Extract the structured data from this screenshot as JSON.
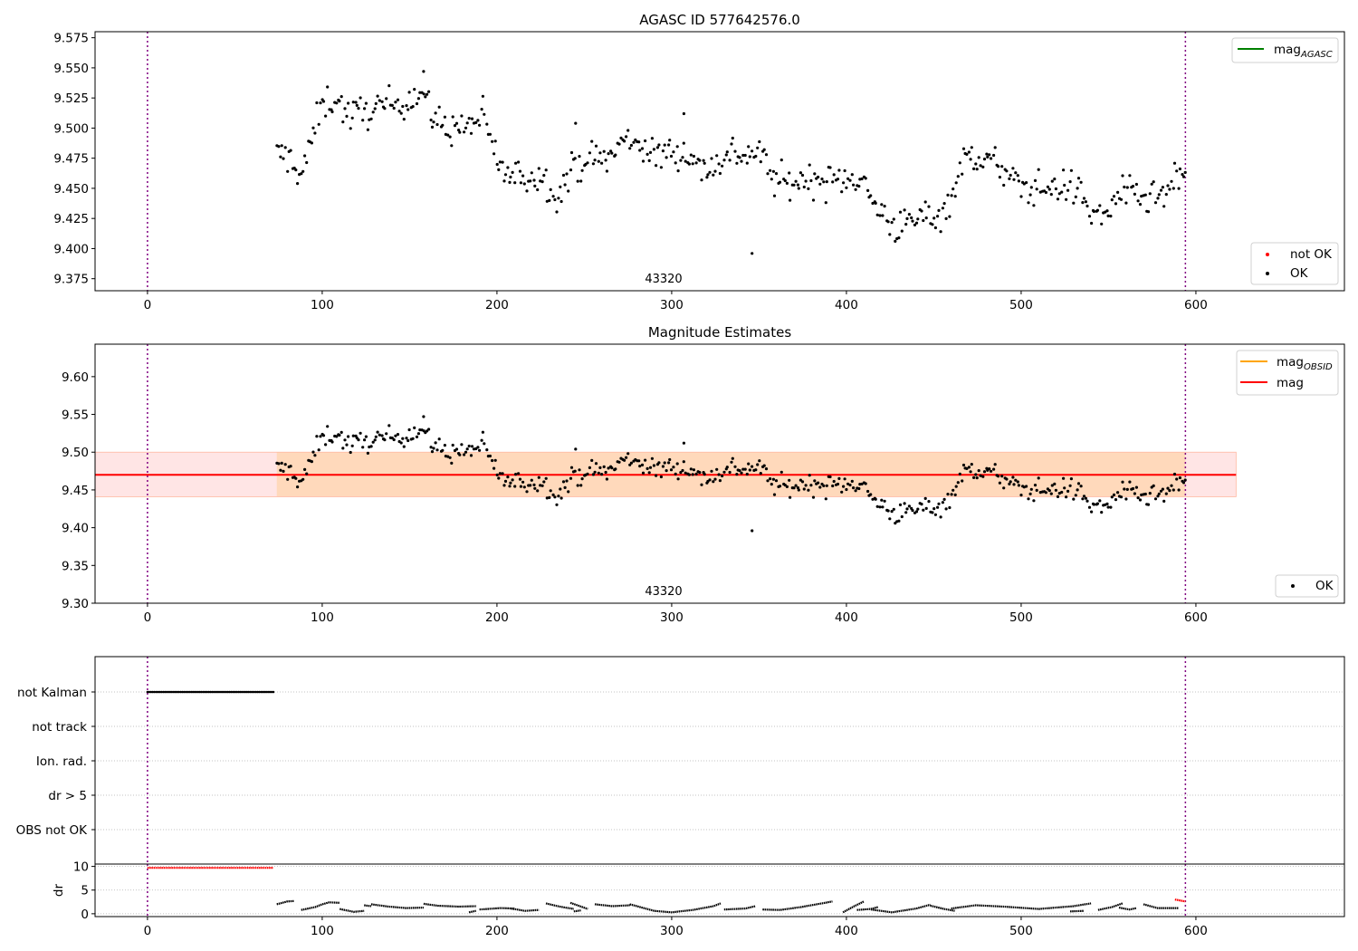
{
  "chart_data": [
    {
      "type": "scatter",
      "title": "AGASC ID 577642576.0",
      "xlim": [
        -30,
        685
      ],
      "ylim": [
        9.365,
        9.58
      ],
      "xticks": [
        0,
        100,
        200,
        300,
        400,
        500,
        600
      ],
      "yticks": [
        "9.375",
        "9.400",
        "9.425",
        "9.450",
        "9.475",
        "9.500",
        "9.525",
        "9.550",
        "9.575"
      ],
      "vlines": [
        0,
        594
      ],
      "obsid_label": "43320",
      "legends": [
        {
          "position": "upper right",
          "entries": [
            {
              "kind": "line",
              "color": "#008000",
              "label": "mag",
              "sub": "AGASC"
            }
          ]
        },
        {
          "position": "lower right",
          "entries": [
            {
              "kind": "marker",
              "color": "#ff0000",
              "label": "not OK"
            },
            {
              "kind": "marker",
              "color": "#000000",
              "label": "OK"
            }
          ]
        }
      ],
      "series": [
        {
          "name": "OK",
          "color": "#000000",
          "x_start": 74,
          "x_end": 594,
          "x_step": 1.0,
          "knots": [
            [
              74,
              9.478
            ],
            [
              82,
              9.475
            ],
            [
              88,
              9.46
            ],
            [
              94,
              9.49
            ],
            [
              100,
              9.52
            ],
            [
              108,
              9.525
            ],
            [
              115,
              9.51
            ],
            [
              128,
              9.515
            ],
            [
              140,
              9.52
            ],
            [
              150,
              9.525
            ],
            [
              158,
              9.53
            ],
            [
              162,
              9.51
            ],
            [
              172,
              9.5
            ],
            [
              182,
              9.5
            ],
            [
              192,
              9.51
            ],
            [
              197,
              9.485
            ],
            [
              205,
              9.46
            ],
            [
              215,
              9.46
            ],
            [
              225,
              9.46
            ],
            [
              235,
              9.445
            ],
            [
              245,
              9.47
            ],
            [
              255,
              9.475
            ],
            [
              265,
              9.475
            ],
            [
              272,
              9.49
            ],
            [
              280,
              9.49
            ],
            [
              290,
              9.475
            ],
            [
              300,
              9.482
            ],
            [
              310,
              9.478
            ],
            [
              318,
              9.465
            ],
            [
              325,
              9.47
            ],
            [
              335,
              9.48
            ],
            [
              342,
              9.478
            ],
            [
              350,
              9.48
            ],
            [
              360,
              9.455
            ],
            [
              370,
              9.455
            ],
            [
              380,
              9.458
            ],
            [
              392,
              9.455
            ],
            [
              402,
              9.46
            ],
            [
              408,
              9.46
            ],
            [
              413,
              9.443
            ],
            [
              420,
              9.43
            ],
            [
              428,
              9.418
            ],
            [
              436,
              9.42
            ],
            [
              445,
              9.428
            ],
            [
              455,
              9.428
            ],
            [
              460,
              9.445
            ],
            [
              465,
              9.465
            ],
            [
              470,
              9.478
            ],
            [
              478,
              9.475
            ],
            [
              488,
              9.468
            ],
            [
              495,
              9.455
            ],
            [
              505,
              9.45
            ],
            [
              515,
              9.45
            ],
            [
              525,
              9.452
            ],
            [
              533,
              9.448
            ],
            [
              540,
              9.43
            ],
            [
              548,
              9.425
            ],
            [
              555,
              9.447
            ],
            [
              565,
              9.443
            ],
            [
              575,
              9.44
            ],
            [
              585,
              9.447
            ],
            [
              594,
              9.467
            ]
          ],
          "noise": 0.01,
          "outliers": [
            [
              346,
              9.396
            ],
            [
              158,
              9.547
            ],
            [
              307,
              9.512
            ],
            [
              245,
              9.504
            ]
          ]
        },
        {
          "name": "not OK",
          "color": "#ff0000",
          "points": []
        }
      ]
    },
    {
      "type": "scatter",
      "title": "Magnitude Estimates",
      "xlim": [
        -30,
        685
      ],
      "ylim": [
        9.3,
        9.643
      ],
      "xticks": [
        0,
        100,
        200,
        300,
        400,
        500,
        600
      ],
      "yticks": [
        "9.30",
        "9.35",
        "9.40",
        "9.45",
        "9.50",
        "9.55",
        "9.60"
      ],
      "vlines": [
        0,
        594
      ],
      "obsid_label": "43320",
      "mag": 9.47,
      "mag_band": {
        "x": [
          -30,
          623
        ],
        "low": 9.441,
        "high": 9.5
      },
      "mag_obsid_band": {
        "x": [
          74,
          594
        ],
        "low": 9.441,
        "high": 9.5
      },
      "legends": [
        {
          "position": "upper right",
          "entries": [
            {
              "kind": "line",
              "color": "#ffa500",
              "label": "mag",
              "sub": "OBSID"
            },
            {
              "kind": "line",
              "color": "#ff0000",
              "label": "mag"
            }
          ]
        },
        {
          "position": "lower right",
          "entries": [
            {
              "kind": "marker",
              "color": "#000000",
              "label": "OK"
            }
          ]
        }
      ]
    },
    {
      "type": "scatter",
      "xlim": [
        -30,
        685
      ],
      "categories": [
        "not Kalman",
        "not track",
        "Ion. rad.",
        "dr > 5",
        "OBS not OK"
      ],
      "flag_points": {
        "not Kalman": [
          0,
          72
        ],
        "not track": [],
        "Ion. rad.": [],
        "dr > 5": [],
        "OBS not OK": []
      },
      "vlines": [
        0,
        594
      ]
    },
    {
      "type": "line",
      "ylabel": "dr",
      "xlim": [
        -30,
        685
      ],
      "ylim": [
        -0.6,
        10.5
      ],
      "xticks": [
        0,
        100,
        200,
        300,
        400,
        500,
        600
      ],
      "yticks": [
        "0",
        "5",
        "10"
      ],
      "vlines": [
        0,
        594
      ],
      "series": [
        {
          "name": "red",
          "color": "#ff0000",
          "segments": [
            [
              [
                0,
                9.7
              ],
              [
                72,
                9.7
              ]
            ],
            [
              [
                588,
                3.0
              ],
              [
                594,
                2.6
              ]
            ]
          ]
        },
        {
          "name": "black",
          "color": "#000000",
          "segments": [
            [
              [
                74,
                2.0
              ],
              [
                80,
                2.6
              ],
              [
                84,
                2.7
              ]
            ],
            [
              [
                88,
                0.8
              ],
              [
                96,
                1.4
              ],
              [
                100,
                2.0
              ],
              [
                104,
                2.4
              ],
              [
                110,
                2.3
              ]
            ],
            [
              [
                110,
                1.0
              ],
              [
                118,
                0.4
              ],
              [
                124,
                0.6
              ]
            ],
            [
              [
                124,
                1.8
              ],
              [
                128,
                1.6
              ]
            ],
            [
              [
                128,
                2.0
              ],
              [
                138,
                1.5
              ],
              [
                148,
                1.2
              ],
              [
                158,
                1.3
              ]
            ],
            [
              [
                158,
                2.1
              ],
              [
                166,
                1.7
              ],
              [
                178,
                1.5
              ],
              [
                188,
                1.6
              ]
            ],
            [
              [
                184,
                0.3
              ],
              [
                188,
                0.6
              ]
            ],
            [
              [
                190,
                0.9
              ],
              [
                202,
                1.2
              ],
              [
                210,
                1.1
              ]
            ],
            [
              [
                208,
                1.1
              ],
              [
                216,
                0.6
              ],
              [
                224,
                0.8
              ]
            ],
            [
              [
                228,
                2.2
              ],
              [
                236,
                1.5
              ],
              [
                244,
                1.0
              ]
            ],
            [
              [
                244,
                0.5
              ],
              [
                248,
                0.7
              ]
            ],
            [
              [
                242,
                2.3
              ],
              [
                252,
                1.0
              ]
            ],
            [
              [
                256,
                2.0
              ],
              [
                266,
                1.6
              ],
              [
                276,
                1.8
              ]
            ],
            [
              [
                276,
                2.0
              ],
              [
                290,
                0.6
              ],
              [
                300,
                0.3
              ],
              [
                312,
                0.8
              ],
              [
                324,
                1.6
              ],
              [
                328,
                2.2
              ]
            ],
            [
              [
                330,
                0.9
              ],
              [
                342,
                1.1
              ],
              [
                348,
                1.6
              ]
            ],
            [
              [
                352,
                0.9
              ],
              [
                362,
                0.8
              ],
              [
                374,
                1.4
              ],
              [
                386,
                2.2
              ],
              [
                392,
                2.6
              ]
            ],
            [
              [
                398,
                0.3
              ],
              [
                404,
                1.5
              ],
              [
                410,
                2.6
              ]
            ],
            [
              [
                406,
                0.8
              ],
              [
                414,
                1.0
              ],
              [
                418,
                1.4
              ]
            ],
            [
              [
                414,
                0.9
              ],
              [
                426,
                0.3
              ],
              [
                440,
                1.1
              ],
              [
                448,
                1.9
              ]
            ],
            [
              [
                448,
                1.7
              ],
              [
                456,
                1.0
              ],
              [
                462,
                0.6
              ]
            ],
            [
              [
                460,
                1.1
              ],
              [
                474,
                1.8
              ],
              [
                490,
                1.5
              ],
              [
                510,
                1.0
              ],
              [
                530,
                1.6
              ],
              [
                540,
                2.2
              ]
            ],
            [
              [
                528,
                0.5
              ],
              [
                536,
                0.6
              ]
            ],
            [
              [
                544,
                0.8
              ],
              [
                552,
                1.4
              ],
              [
                558,
                2.2
              ]
            ],
            [
              [
                556,
                1.3
              ],
              [
                562,
                0.9
              ],
              [
                566,
                1.2
              ]
            ],
            [
              [
                570,
                2.0
              ],
              [
                578,
                1.2
              ],
              [
                590,
                1.2
              ]
            ]
          ]
        }
      ]
    }
  ]
}
